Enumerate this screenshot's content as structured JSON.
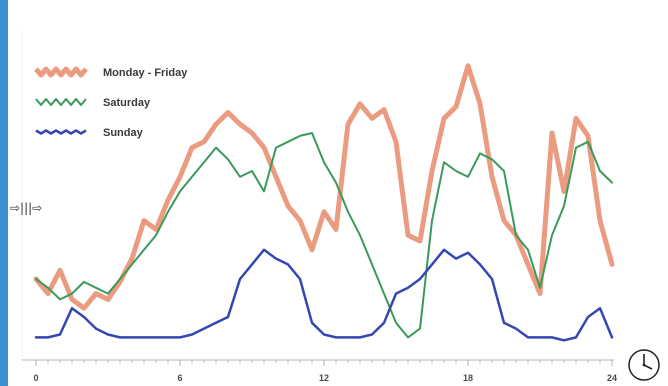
{
  "chart_data": {
    "type": "line",
    "title": "",
    "xlabel": "",
    "ylabel": "",
    "xlim": [
      0,
      24
    ],
    "x_ticks": [
      0,
      6,
      12,
      18,
      24
    ],
    "grid": false,
    "legend_position": "top-left",
    "series": [
      {
        "name": "Monday - Friday",
        "color": "#e8896a",
        "x": [
          0,
          0.5,
          1,
          1.5,
          2,
          2.5,
          3,
          3.5,
          4,
          4.5,
          5,
          5.5,
          6,
          6.5,
          7,
          7.5,
          8,
          8.5,
          9,
          9.5,
          10,
          10.5,
          11,
          11.5,
          12,
          12.5,
          13,
          13.5,
          14,
          14.5,
          15,
          15.5,
          16,
          16.5,
          17,
          17.5,
          18,
          18.5,
          19,
          19.5,
          20,
          20.5,
          21,
          21.5,
          22,
          22.5,
          23,
          23.5,
          24
        ],
        "values": [
          25,
          20,
          28,
          18,
          15,
          20,
          18,
          24,
          32,
          45,
          42,
          52,
          60,
          70,
          72,
          78,
          82,
          78,
          75,
          70,
          60,
          50,
          45,
          35,
          48,
          42,
          78,
          85,
          80,
          83,
          72,
          40,
          38,
          62,
          80,
          84,
          98,
          85,
          60,
          45,
          40,
          30,
          20,
          75,
          55,
          80,
          74,
          45,
          30
        ]
      },
      {
        "name": "Saturday",
        "color": "#3a9a5c",
        "x": [
          0,
          0.5,
          1,
          1.5,
          2,
          2.5,
          3,
          3.5,
          4,
          4.5,
          5,
          5.5,
          6,
          6.5,
          7,
          7.5,
          8,
          8.5,
          9,
          9.5,
          10,
          10.5,
          11,
          11.5,
          12,
          12.5,
          13,
          13.5,
          14,
          14.5,
          15,
          15.5,
          16,
          16.5,
          17,
          17.5,
          18,
          18.5,
          19,
          19.5,
          20,
          20.5,
          21,
          21.5,
          22,
          22.5,
          23,
          23.5,
          24
        ],
        "values": [
          25,
          22,
          18,
          20,
          24,
          22,
          20,
          25,
          30,
          35,
          40,
          48,
          55,
          60,
          65,
          70,
          66,
          60,
          62,
          55,
          70,
          72,
          74,
          75,
          65,
          58,
          48,
          40,
          30,
          20,
          10,
          5,
          8,
          45,
          65,
          62,
          60,
          68,
          66,
          62,
          40,
          35,
          22,
          40,
          50,
          70,
          72,
          62,
          58
        ]
      },
      {
        "name": "Sunday",
        "color": "#3547b0",
        "x": [
          0,
          0.5,
          1,
          1.5,
          2,
          2.5,
          3,
          3.5,
          4,
          4.5,
          5,
          5.5,
          6,
          6.5,
          7,
          7.5,
          8,
          8.5,
          9,
          9.5,
          10,
          10.5,
          11,
          11.5,
          12,
          12.5,
          13,
          13.5,
          14,
          14.5,
          15,
          15.5,
          16,
          16.5,
          17,
          17.5,
          18,
          18.5,
          19,
          19.5,
          20,
          20.5,
          21,
          21.5,
          22,
          22.5,
          23,
          23.5,
          24
        ],
        "values": [
          5,
          5,
          6,
          15,
          12,
          8,
          6,
          5,
          5,
          5,
          5,
          5,
          5,
          6,
          8,
          10,
          12,
          25,
          30,
          35,
          32,
          30,
          25,
          10,
          6,
          5,
          5,
          5,
          6,
          10,
          20,
          22,
          25,
          30,
          35,
          32,
          34,
          30,
          25,
          10,
          8,
          5,
          5,
          5,
          4,
          5,
          12,
          15,
          5
        ]
      }
    ]
  },
  "icons": {
    "pan": "⇨|||⇨",
    "clock": "clock-icon"
  }
}
